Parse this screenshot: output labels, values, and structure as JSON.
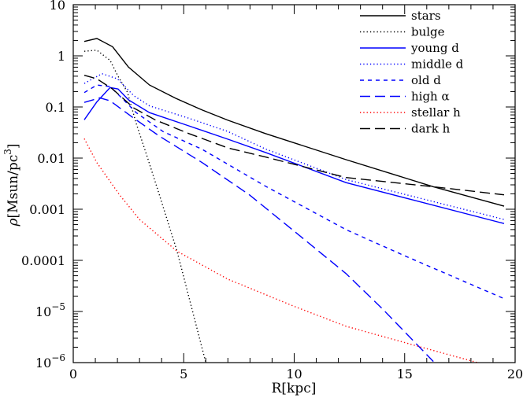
{
  "chart_data": {
    "type": "line",
    "title": "",
    "xlabel": "R[kpc]",
    "ylabel": "ρ[Msun/pc³]",
    "ylabel_parts": {
      "symbol": "ρ",
      "unit": "[Msun/pc",
      "exp": "3",
      "close": "]"
    },
    "xlim": [
      0,
      20
    ],
    "ylim": [
      1e-06,
      10
    ],
    "yscale": "log",
    "x_ticks": [
      {
        "value": 0,
        "label": "0"
      },
      {
        "value": 5,
        "label": "5"
      },
      {
        "value": 10,
        "label": "10"
      },
      {
        "value": 15,
        "label": "15"
      },
      {
        "value": 20,
        "label": "20"
      }
    ],
    "y_ticks": [
      {
        "value": 10,
        "label": "10"
      },
      {
        "value": 1,
        "label": "1"
      },
      {
        "value": 0.1,
        "label": "0.1"
      },
      {
        "value": 0.01,
        "label": "0.01"
      },
      {
        "value": 0.001,
        "label": "0.001"
      },
      {
        "value": 0.0001,
        "label": "0.0001"
      },
      {
        "value": 1e-05,
        "label": "10",
        "exp": "−5"
      },
      {
        "value": 1e-06,
        "label": "10",
        "exp": "−6"
      }
    ],
    "grid": false,
    "legend_position": "top-right",
    "series": [
      {
        "name": "stars",
        "color": "#000000",
        "style": "solid",
        "x": [
          0.5,
          1.07,
          1.78,
          2.5,
          3.45,
          4.63,
          5.84,
          7,
          8.7,
          12.35,
          16.3,
          19.5
        ],
        "y": [
          1.91,
          2.19,
          1.51,
          0.603,
          0.269,
          0.148,
          0.0871,
          0.055,
          0.0302,
          0.00933,
          0.00275,
          0.00115
        ]
      },
      {
        "name": "bulge",
        "color": "#000000",
        "style": "dotted",
        "x": [
          0.5,
          1.07,
          1.67,
          2.03,
          2.45,
          2.85,
          3.35,
          3.9,
          4.7,
          6.0
        ],
        "y": [
          1.23,
          1.29,
          0.813,
          0.398,
          0.195,
          0.0479,
          0.0105,
          0.0019,
          0.000151,
          1e-06
        ]
      },
      {
        "name": "young d",
        "color": "#0000ff",
        "style": "solid",
        "x": [
          0.5,
          1.07,
          1.67,
          2.03,
          2.5,
          3.45,
          5.23,
          7,
          8.7,
          12.35,
          19.5
        ],
        "y": [
          0.0562,
          0.126,
          0.24,
          0.224,
          0.138,
          0.0776,
          0.0427,
          0.0234,
          0.0129,
          0.00331,
          0.000525
        ]
      },
      {
        "name": "middle d",
        "color": "#0000ff",
        "style": "dotted",
        "x": [
          0.5,
          1.3,
          2.0,
          2.74,
          3.45,
          5.23,
          7,
          8.7,
          12.35,
          19.5
        ],
        "y": [
          0.288,
          0.447,
          0.355,
          0.166,
          0.105,
          0.0603,
          0.0331,
          0.0151,
          0.0038,
          0.00063
        ]
      },
      {
        "name": "old d",
        "color": "#0000ff",
        "style": "short-dash",
        "x": [
          0.5,
          1.07,
          1.67,
          2.28,
          2.85,
          4.06,
          5.84,
          8.7,
          12.35,
          15,
          19.5
        ],
        "y": [
          0.191,
          0.269,
          0.251,
          0.138,
          0.0776,
          0.0331,
          0.0148,
          0.00282,
          0.000398,
          0.000123,
          1.78e-05
        ]
      },
      {
        "name": "high α",
        "color": "#0000ff",
        "style": "long-dash",
        "x": [
          0.5,
          1.2,
          1.67,
          2.74,
          3.9,
          5.84,
          7.97,
          10,
          12.35,
          14,
          16.3
        ],
        "y": [
          0.123,
          0.151,
          0.132,
          0.0603,
          0.0269,
          0.00813,
          0.00191,
          0.000372,
          5.5e-05,
          1.12e-05,
          1.05e-06
        ]
      },
      {
        "name": "stellar h",
        "color": "#ff0000",
        "style": "dotted",
        "x": [
          0.5,
          1.07,
          2.1,
          3,
          4.7,
          7,
          10,
          12.35,
          15.6,
          18.3
        ],
        "y": [
          0.024,
          0.00813,
          0.0019,
          0.00063,
          0.000151,
          4.27e-05,
          1.26e-05,
          5.13e-06,
          2.09e-06,
          1e-06
        ]
      },
      {
        "name": "dark h",
        "color": "#000000",
        "style": "long-dash",
        "x": [
          0.5,
          1.07,
          1.78,
          2.74,
          3.7,
          5.23,
          7,
          8.7,
          12.35,
          16.3,
          19.5
        ],
        "y": [
          0.417,
          0.355,
          0.224,
          0.0955,
          0.0562,
          0.0302,
          0.0158,
          0.0105,
          0.00417,
          0.00275,
          0.00191
        ]
      }
    ]
  }
}
